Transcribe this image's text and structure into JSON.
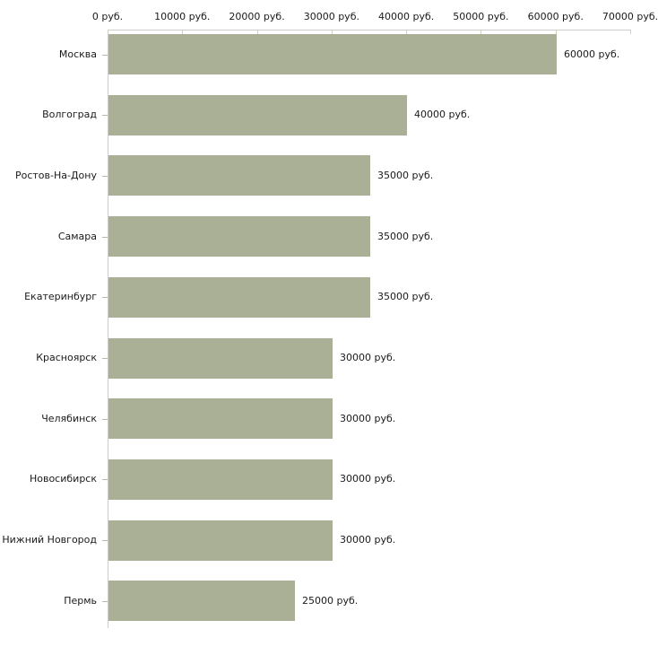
{
  "chart_data": {
    "type": "bar",
    "orientation": "horizontal",
    "title": "",
    "xlabel": "",
    "ylabel": "",
    "unit": "руб.",
    "categories": [
      "Москва",
      "Волгоград",
      "Ростов-На-Дону",
      "Самара",
      "Екатеринбург",
      "Красноярск",
      "Челябинск",
      "Новосибирск",
      "Нижний Новгород",
      "Пермь"
    ],
    "values": [
      60000,
      40000,
      35000,
      35000,
      35000,
      30000,
      30000,
      30000,
      30000,
      25000
    ],
    "value_labels": [
      "60000 руб.",
      "40000 руб.",
      "35000 руб.",
      "35000 руб.",
      "35000 руб.",
      "30000 руб.",
      "30000 руб.",
      "30000 руб.",
      "30000 руб.",
      "25000 руб."
    ],
    "xlim": [
      0,
      70000
    ],
    "x_ticks": [
      0,
      10000,
      20000,
      30000,
      40000,
      50000,
      60000,
      70000
    ],
    "x_tick_labels": [
      "0 руб.",
      "10000 руб.",
      "20000 руб.",
      "30000 руб.",
      "40000 руб.",
      "50000 руб.",
      "60000 руб.",
      "70000 руб."
    ],
    "grid": false,
    "legend": false,
    "colors": {
      "bar": "#a9b095",
      "axis": "#cccccc",
      "x_tick": "#d2d2bc",
      "y_tick": "#b8b8a8",
      "text": "#1a1a1a",
      "background": "#ffffff"
    }
  }
}
